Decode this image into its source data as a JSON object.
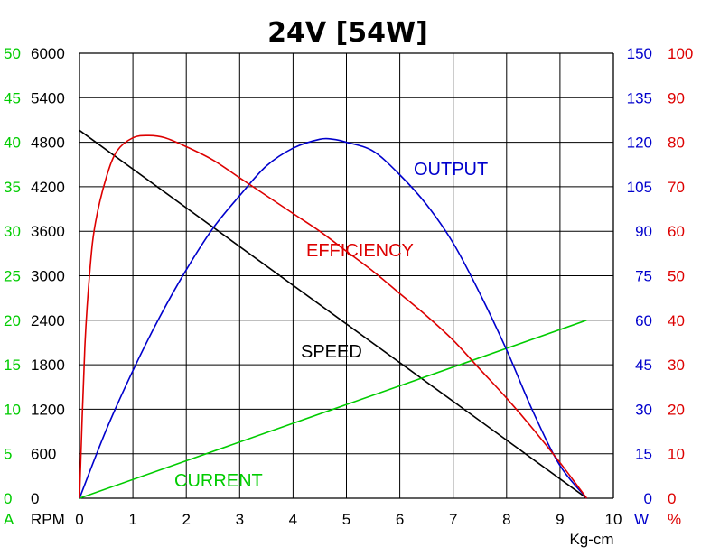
{
  "chart_data": {
    "type": "line",
    "title": "24V [54W]",
    "xlabel": "Kg-cm",
    "xlim": [
      0,
      10
    ],
    "x_ticks": [
      "0",
      "1",
      "2",
      "3",
      "4",
      "5",
      "6",
      "7",
      "8",
      "9",
      "10"
    ],
    "axes": {
      "current": {
        "unit": "A",
        "color": "#00cc00",
        "lim": [
          0,
          50
        ],
        "ticks": [
          "0",
          "5",
          "10",
          "15",
          "20",
          "25",
          "30",
          "35",
          "40",
          "45",
          "50"
        ]
      },
      "speed": {
        "unit": "RPM",
        "color": "#000000",
        "lim": [
          0,
          6000
        ],
        "ticks": [
          "0",
          "600",
          "1200",
          "1800",
          "2400",
          "3000",
          "3600",
          "4200",
          "4800",
          "5400",
          "6000"
        ]
      },
      "output": {
        "unit": "W",
        "color": "#0000cc",
        "lim": [
          0,
          150
        ],
        "ticks": [
          "0",
          "15",
          "30",
          "45",
          "60",
          "75",
          "90",
          "105",
          "120",
          "135",
          "150"
        ]
      },
      "efficiency": {
        "unit": "%",
        "color": "#dd0000",
        "lim": [
          0,
          100
        ],
        "ticks": [
          "0",
          "10",
          "20",
          "30",
          "40",
          "50",
          "60",
          "70",
          "80",
          "90",
          "100"
        ]
      }
    },
    "grid": true,
    "series": [
      {
        "name": "SPEED",
        "axis": "speed",
        "color": "#000000",
        "x": [
          0,
          9.5
        ],
        "y": [
          4960,
          0
        ]
      },
      {
        "name": "CURRENT",
        "axis": "current",
        "color": "#00cc00",
        "x": [
          0,
          9.5
        ],
        "y": [
          0,
          20
        ]
      },
      {
        "name": "OUTPUT",
        "axis": "output",
        "color": "#0000cc",
        "x": [
          0,
          0.5,
          1,
          1.5,
          2,
          2.5,
          3,
          3.5,
          4,
          4.5,
          4.75,
          5,
          5.5,
          6,
          6.5,
          7,
          7.5,
          8,
          8.5,
          9,
          9.5
        ],
        "y": [
          0,
          23,
          43,
          61,
          77,
          91,
          102,
          112,
          118,
          121,
          121,
          120,
          117,
          109,
          99,
          86,
          69,
          50,
          29,
          11,
          0
        ]
      },
      {
        "name": "EFFICIENCY",
        "axis": "efficiency",
        "color": "#dd0000",
        "x": [
          0,
          0.1,
          0.2,
          0.3,
          0.5,
          0.7,
          1,
          1.3,
          1.6,
          2,
          2.5,
          3,
          3.5,
          4,
          4.5,
          5,
          5.5,
          6,
          6.5,
          7,
          7.5,
          8,
          8.5,
          9,
          9.5
        ],
        "y": [
          0,
          34,
          52,
          62,
          72,
          78,
          81,
          81.5,
          81,
          79,
          76,
          72,
          68,
          64,
          60,
          55.5,
          51,
          46,
          41,
          35.5,
          29,
          22.5,
          15.5,
          8,
          0
        ]
      }
    ],
    "labels": [
      {
        "text": "OUTPUT",
        "series": "OUTPUT"
      },
      {
        "text": "EFFICIENCY",
        "series": "EFFICIENCY"
      },
      {
        "text": "SPEED",
        "series": "SPEED"
      },
      {
        "text": "CURRENT",
        "series": "CURRENT"
      }
    ]
  }
}
